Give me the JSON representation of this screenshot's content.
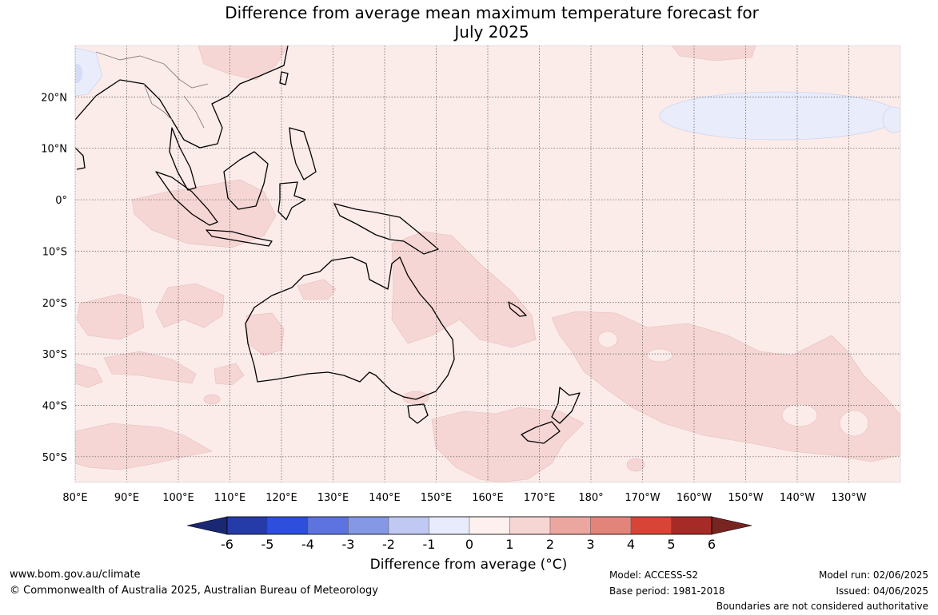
{
  "title": {
    "line1": "Difference from average mean maximum temperature forecast for",
    "line2": "July 2025"
  },
  "map": {
    "lon_ticks": [
      "80°E",
      "90°E",
      "100°E",
      "110°E",
      "120°E",
      "130°E",
      "140°E",
      "150°E",
      "160°E",
      "170°E",
      "180°",
      "170°W",
      "160°W",
      "150°W",
      "140°W",
      "130°W"
    ],
    "lat_ticks": [
      "20°N",
      "10°N",
      "0°",
      "10°S",
      "20°S",
      "30°S",
      "40°S",
      "50°S"
    ],
    "lon_range": [
      80,
      240
    ],
    "lat_range": [
      -55,
      30
    ],
    "grid": true,
    "colors": {
      "ocean_base": "#fbebe9",
      "warm_0_1": "#fbebe9",
      "warm_1_2": "#f5d6d4",
      "cool_0_1": "#e8ecfb",
      "cool_1_2": "#d4dcf6",
      "coast": "#000000",
      "border": "#8a7f7f"
    }
  },
  "colorbar": {
    "title": "Difference from average (°C)",
    "ticks": [
      "-6",
      "-5",
      "-4",
      "-3",
      "-2",
      "-1",
      "0",
      "1",
      "2",
      "3",
      "4",
      "5",
      "6"
    ],
    "colors": [
      "#1a2873",
      "#253ba8",
      "#2e4fdb",
      "#5d74e0",
      "#8598e6",
      "#c0c9f2",
      "#e8ebfb",
      "#fdf0ee",
      "#f6d6d3",
      "#eba79f",
      "#e3847a",
      "#d84537",
      "#a62a25",
      "#772520"
    ]
  },
  "footer": {
    "website": "www.bom.gov.au/climate",
    "copyright": "© Commonwealth of Australia 2025, Australian Bureau of Meteorology",
    "model": "Model: ACCESS-S2",
    "base_period": "Base period: 1981-2018",
    "model_run": "Model run: 02/06/2025",
    "issued": "Issued: 04/06/2025",
    "disclaimer": "Boundaries are not considered authoritative"
  }
}
